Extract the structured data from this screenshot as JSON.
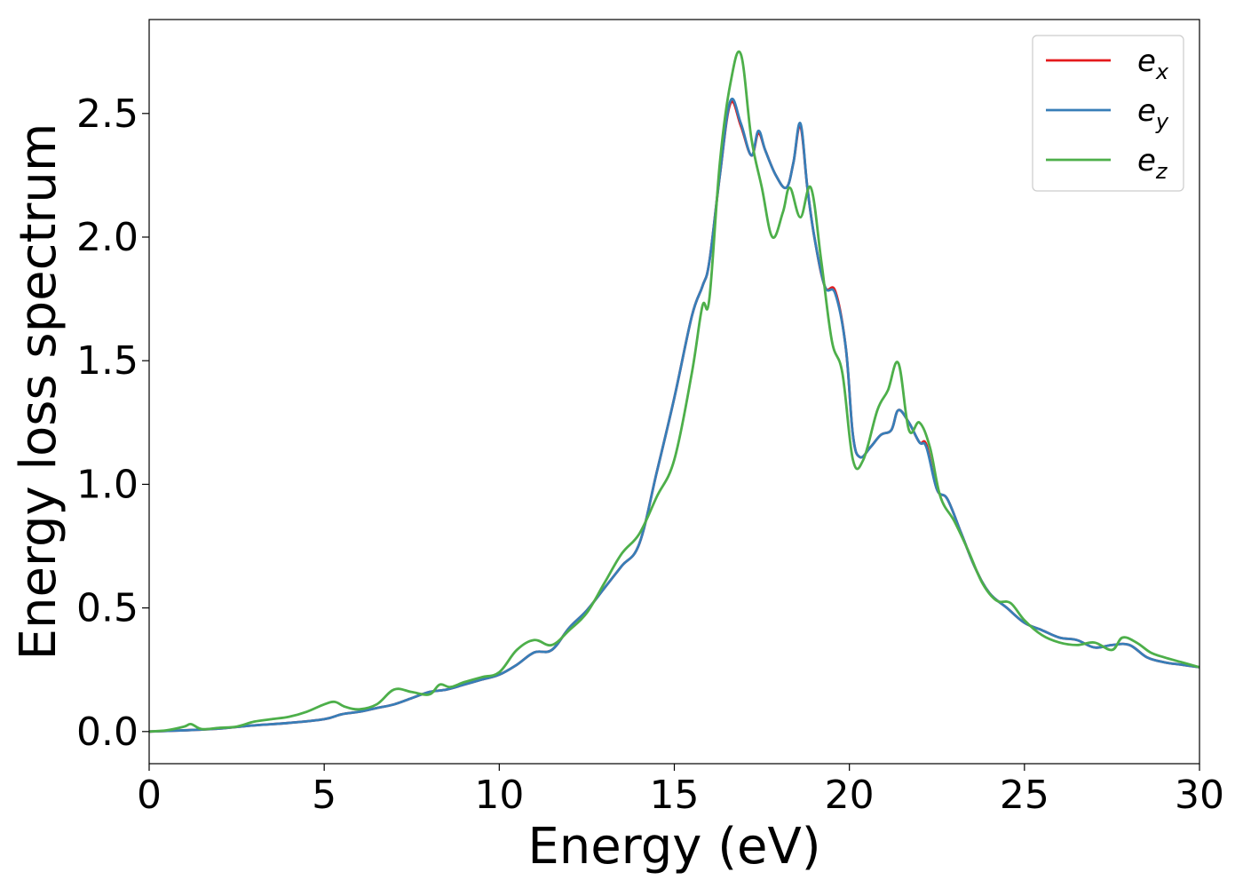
{
  "chart_data": {
    "type": "line",
    "title": "",
    "xlabel": "Energy (eV)",
    "ylabel": "Energy loss spectrum",
    "xlim": [
      0,
      30
    ],
    "ylim": [
      -0.13,
      2.88
    ],
    "xticks": [
      0,
      5,
      10,
      15,
      20,
      25,
      30
    ],
    "yticks": [
      0.0,
      0.5,
      1.0,
      1.5,
      2.0,
      2.5
    ],
    "xtick_labels": [
      "0",
      "5",
      "10",
      "15",
      "20",
      "25",
      "30"
    ],
    "ytick_labels": [
      "0.0",
      "0.5",
      "1.0",
      "1.5",
      "2.0",
      "2.5"
    ],
    "grid": false,
    "legend_position": "top-right",
    "series": [
      {
        "name": "e_x",
        "legend_main": "e",
        "legend_sub": "x",
        "color": "#e41a1c",
        "x": [
          0,
          1,
          2,
          3,
          4,
          5,
          5.5,
          6,
          6.5,
          7,
          7.5,
          8,
          8.5,
          9,
          9.5,
          10,
          10.5,
          11,
          11.5,
          12,
          12.5,
          13,
          13.5,
          14,
          14.5,
          15,
          15.5,
          15.8,
          16,
          16.3,
          16.6,
          16.9,
          17.2,
          17.4,
          17.6,
          17.9,
          18.2,
          18.4,
          18.6,
          18.8,
          19,
          19.3,
          19.6,
          19.9,
          20.1,
          20.3,
          20.6,
          20.9,
          21.2,
          21.4,
          21.7,
          22,
          22.2,
          22.5,
          22.8,
          23.2,
          23.6,
          24,
          24.5,
          25,
          25.5,
          26,
          26.5,
          27,
          27.5,
          28,
          28.5,
          29,
          29.5,
          30
        ],
        "y": [
          0,
          0.005,
          0.012,
          0.025,
          0.035,
          0.05,
          0.07,
          0.08,
          0.095,
          0.11,
          0.135,
          0.16,
          0.17,
          0.19,
          0.21,
          0.23,
          0.27,
          0.32,
          0.33,
          0.42,
          0.49,
          0.58,
          0.67,
          0.76,
          1.05,
          1.35,
          1.68,
          1.8,
          1.9,
          2.25,
          2.54,
          2.45,
          2.33,
          2.42,
          2.35,
          2.25,
          2.2,
          2.3,
          2.45,
          2.2,
          2.0,
          1.8,
          1.78,
          1.55,
          1.2,
          1.11,
          1.15,
          1.2,
          1.22,
          1.3,
          1.25,
          1.17,
          1.16,
          0.98,
          0.94,
          0.8,
          0.66,
          0.56,
          0.5,
          0.44,
          0.41,
          0.38,
          0.37,
          0.34,
          0.35,
          0.35,
          0.3,
          0.28,
          0.27,
          0.26
        ]
      },
      {
        "name": "e_y",
        "legend_main": "e",
        "legend_sub": "y",
        "color": "#377eb8",
        "x": [
          0,
          1,
          2,
          3,
          4,
          5,
          5.5,
          6,
          6.5,
          7,
          7.5,
          8,
          8.5,
          9,
          9.5,
          10,
          10.5,
          11,
          11.5,
          12,
          12.5,
          13,
          13.5,
          14,
          14.5,
          15,
          15.5,
          15.8,
          16,
          16.3,
          16.6,
          16.9,
          17.2,
          17.4,
          17.6,
          17.9,
          18.2,
          18.4,
          18.6,
          18.8,
          19,
          19.3,
          19.6,
          19.9,
          20.1,
          20.3,
          20.6,
          20.9,
          21.2,
          21.4,
          21.7,
          22,
          22.2,
          22.5,
          22.8,
          23.2,
          23.6,
          24,
          24.5,
          25,
          25.5,
          26,
          26.5,
          27,
          27.5,
          28,
          28.5,
          29,
          29.5,
          30
        ],
        "y": [
          0,
          0.005,
          0.012,
          0.025,
          0.035,
          0.05,
          0.07,
          0.08,
          0.095,
          0.11,
          0.135,
          0.16,
          0.17,
          0.19,
          0.21,
          0.23,
          0.27,
          0.32,
          0.33,
          0.42,
          0.49,
          0.58,
          0.67,
          0.76,
          1.05,
          1.35,
          1.68,
          1.8,
          1.9,
          2.25,
          2.55,
          2.46,
          2.33,
          2.43,
          2.35,
          2.25,
          2.2,
          2.3,
          2.46,
          2.2,
          2.0,
          1.8,
          1.77,
          1.55,
          1.2,
          1.11,
          1.15,
          1.2,
          1.22,
          1.3,
          1.25,
          1.17,
          1.15,
          0.98,
          0.94,
          0.8,
          0.66,
          0.56,
          0.5,
          0.44,
          0.41,
          0.38,
          0.37,
          0.34,
          0.35,
          0.35,
          0.3,
          0.28,
          0.27,
          0.26
        ]
      },
      {
        "name": "e_z",
        "legend_main": "e",
        "legend_sub": "z",
        "color": "#4daf4a",
        "x": [
          0,
          0.5,
          1,
          1.2,
          1.5,
          2,
          2.5,
          3,
          3.5,
          4,
          4.5,
          5,
          5.3,
          5.6,
          6,
          6.5,
          7,
          7.5,
          8,
          8.3,
          8.6,
          9,
          9.5,
          10,
          10.5,
          11,
          11.5,
          12,
          12.5,
          13,
          13.5,
          14,
          14.5,
          15,
          15.5,
          15.8,
          16,
          16.3,
          16.6,
          16.9,
          17.2,
          17.5,
          17.8,
          18.1,
          18.3,
          18.6,
          18.9,
          19.2,
          19.5,
          19.8,
          20.1,
          20.4,
          20.8,
          21.1,
          21.4,
          21.7,
          22,
          22.3,
          22.6,
          23,
          23.4,
          23.8,
          24.2,
          24.6,
          25,
          25.5,
          26,
          26.5,
          27,
          27.5,
          27.8,
          28.2,
          28.6,
          29,
          29.5,
          30
        ],
        "y": [
          0,
          0.005,
          0.02,
          0.03,
          0.01,
          0.015,
          0.02,
          0.04,
          0.05,
          0.06,
          0.08,
          0.11,
          0.12,
          0.1,
          0.09,
          0.11,
          0.17,
          0.16,
          0.15,
          0.19,
          0.18,
          0.2,
          0.22,
          0.24,
          0.33,
          0.37,
          0.35,
          0.41,
          0.48,
          0.6,
          0.72,
          0.8,
          0.95,
          1.1,
          1.45,
          1.72,
          1.75,
          2.3,
          2.62,
          2.74,
          2.4,
          2.2,
          2.0,
          2.1,
          2.2,
          2.08,
          2.2,
          1.9,
          1.58,
          1.45,
          1.1,
          1.1,
          1.3,
          1.38,
          1.49,
          1.22,
          1.25,
          1.15,
          0.95,
          0.85,
          0.73,
          0.6,
          0.53,
          0.52,
          0.45,
          0.39,
          0.36,
          0.35,
          0.36,
          0.33,
          0.38,
          0.36,
          0.32,
          0.3,
          0.28,
          0.26
        ]
      }
    ]
  }
}
